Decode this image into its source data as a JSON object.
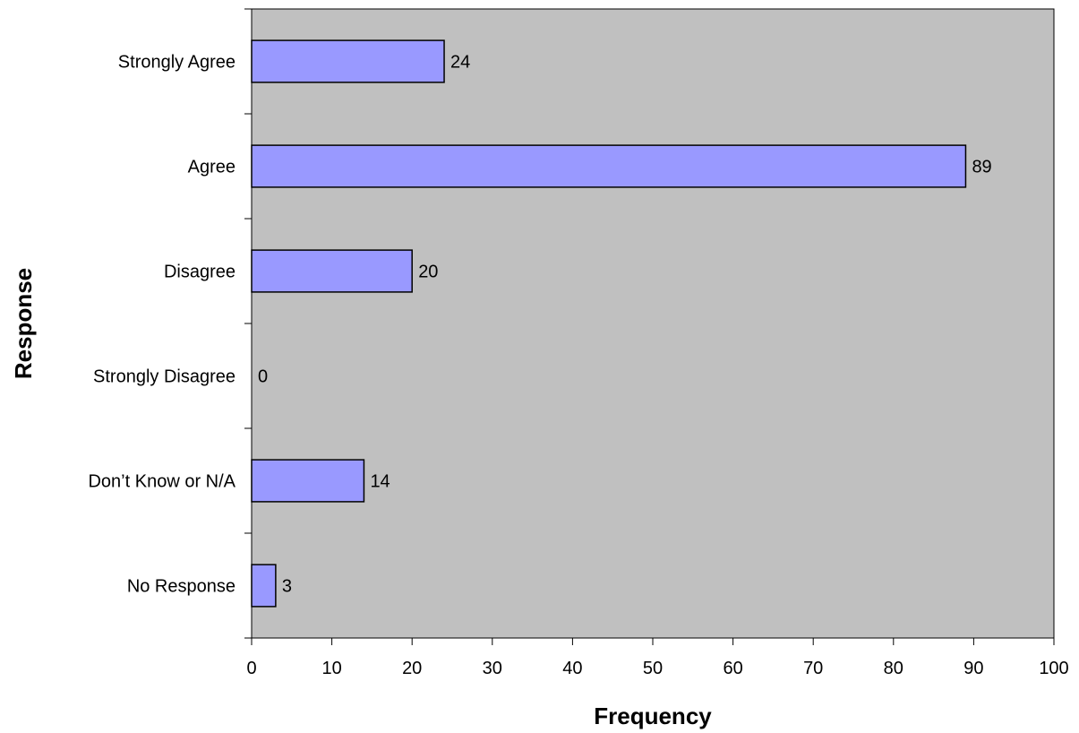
{
  "chart_data": {
    "type": "bar",
    "orientation": "horizontal",
    "categories": [
      "Strongly Agree",
      "Agree",
      "Disagree",
      "Strongly Disagree",
      "Don’t Know or N/A",
      "No Response"
    ],
    "values": [
      24,
      89,
      20,
      0,
      14,
      3
    ],
    "data_labels": [
      "24",
      "89",
      "20",
      "0",
      "14",
      "3"
    ],
    "xlabel": "Frequency",
    "ylabel": "Response",
    "xlim": [
      0,
      100
    ],
    "xticks": [
      0,
      10,
      20,
      30,
      40,
      50,
      60,
      70,
      80,
      90,
      100
    ],
    "xtick_labels": [
      "0",
      "10",
      "20",
      "30",
      "40",
      "50",
      "60",
      "70",
      "80",
      "90",
      "100"
    ],
    "grid": false,
    "legend": "none",
    "colors": {
      "bar_fill": "#9999ff",
      "bar_stroke": "#000000",
      "plot_background": "#c0c0c0",
      "page_background": "#ffffff"
    }
  }
}
